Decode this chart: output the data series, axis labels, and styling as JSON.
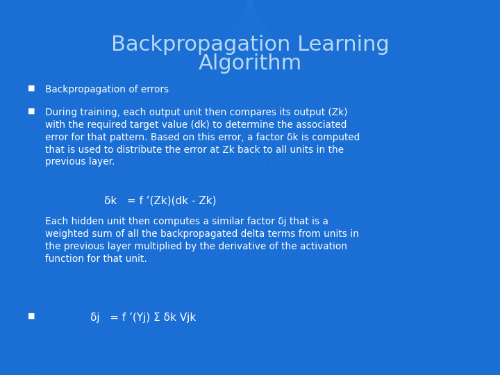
{
  "title_line1": "Backpropagation Learning",
  "title_line2": "Algorithm",
  "bg_color": "#1B6FD4",
  "title_color": "#B8D8F0",
  "text_color": "#FFFFFF",
  "bullet_color": "#FFFFFF",
  "title_fontsize": 22,
  "body_fontsize": 9.8,
  "formula_fontsize": 11,
  "bullet1": "Backpropagation of errors",
  "bullet2_line1": "During training, each output unit then compares its output (Z",
  "bullet2_line1b": "k",
  "bullet2_line1c": ")",
  "bullet2_lines": [
    "During training, each output unit then compares its output (Zk)",
    "with the required target value (dk) to determine the associated",
    "error for that pattern. Based on this error, a factor δk is computed",
    "that is used to distribute the error at Zk back to all units in the",
    "previous layer."
  ],
  "formula1": "δk   = f ’(Zk)(dk - Zk)",
  "para2_lines": [
    "Each hidden unit then computes a similar factor δj that is a",
    "weighted sum of all the backpropagated delta terms from units in",
    "the previous layer multiplied by the derivative of the activation",
    "function for that unit."
  ],
  "bullet3": "δj   = f ’(Yj) Σ δk Vjk",
  "grid_color": "#2080E0"
}
